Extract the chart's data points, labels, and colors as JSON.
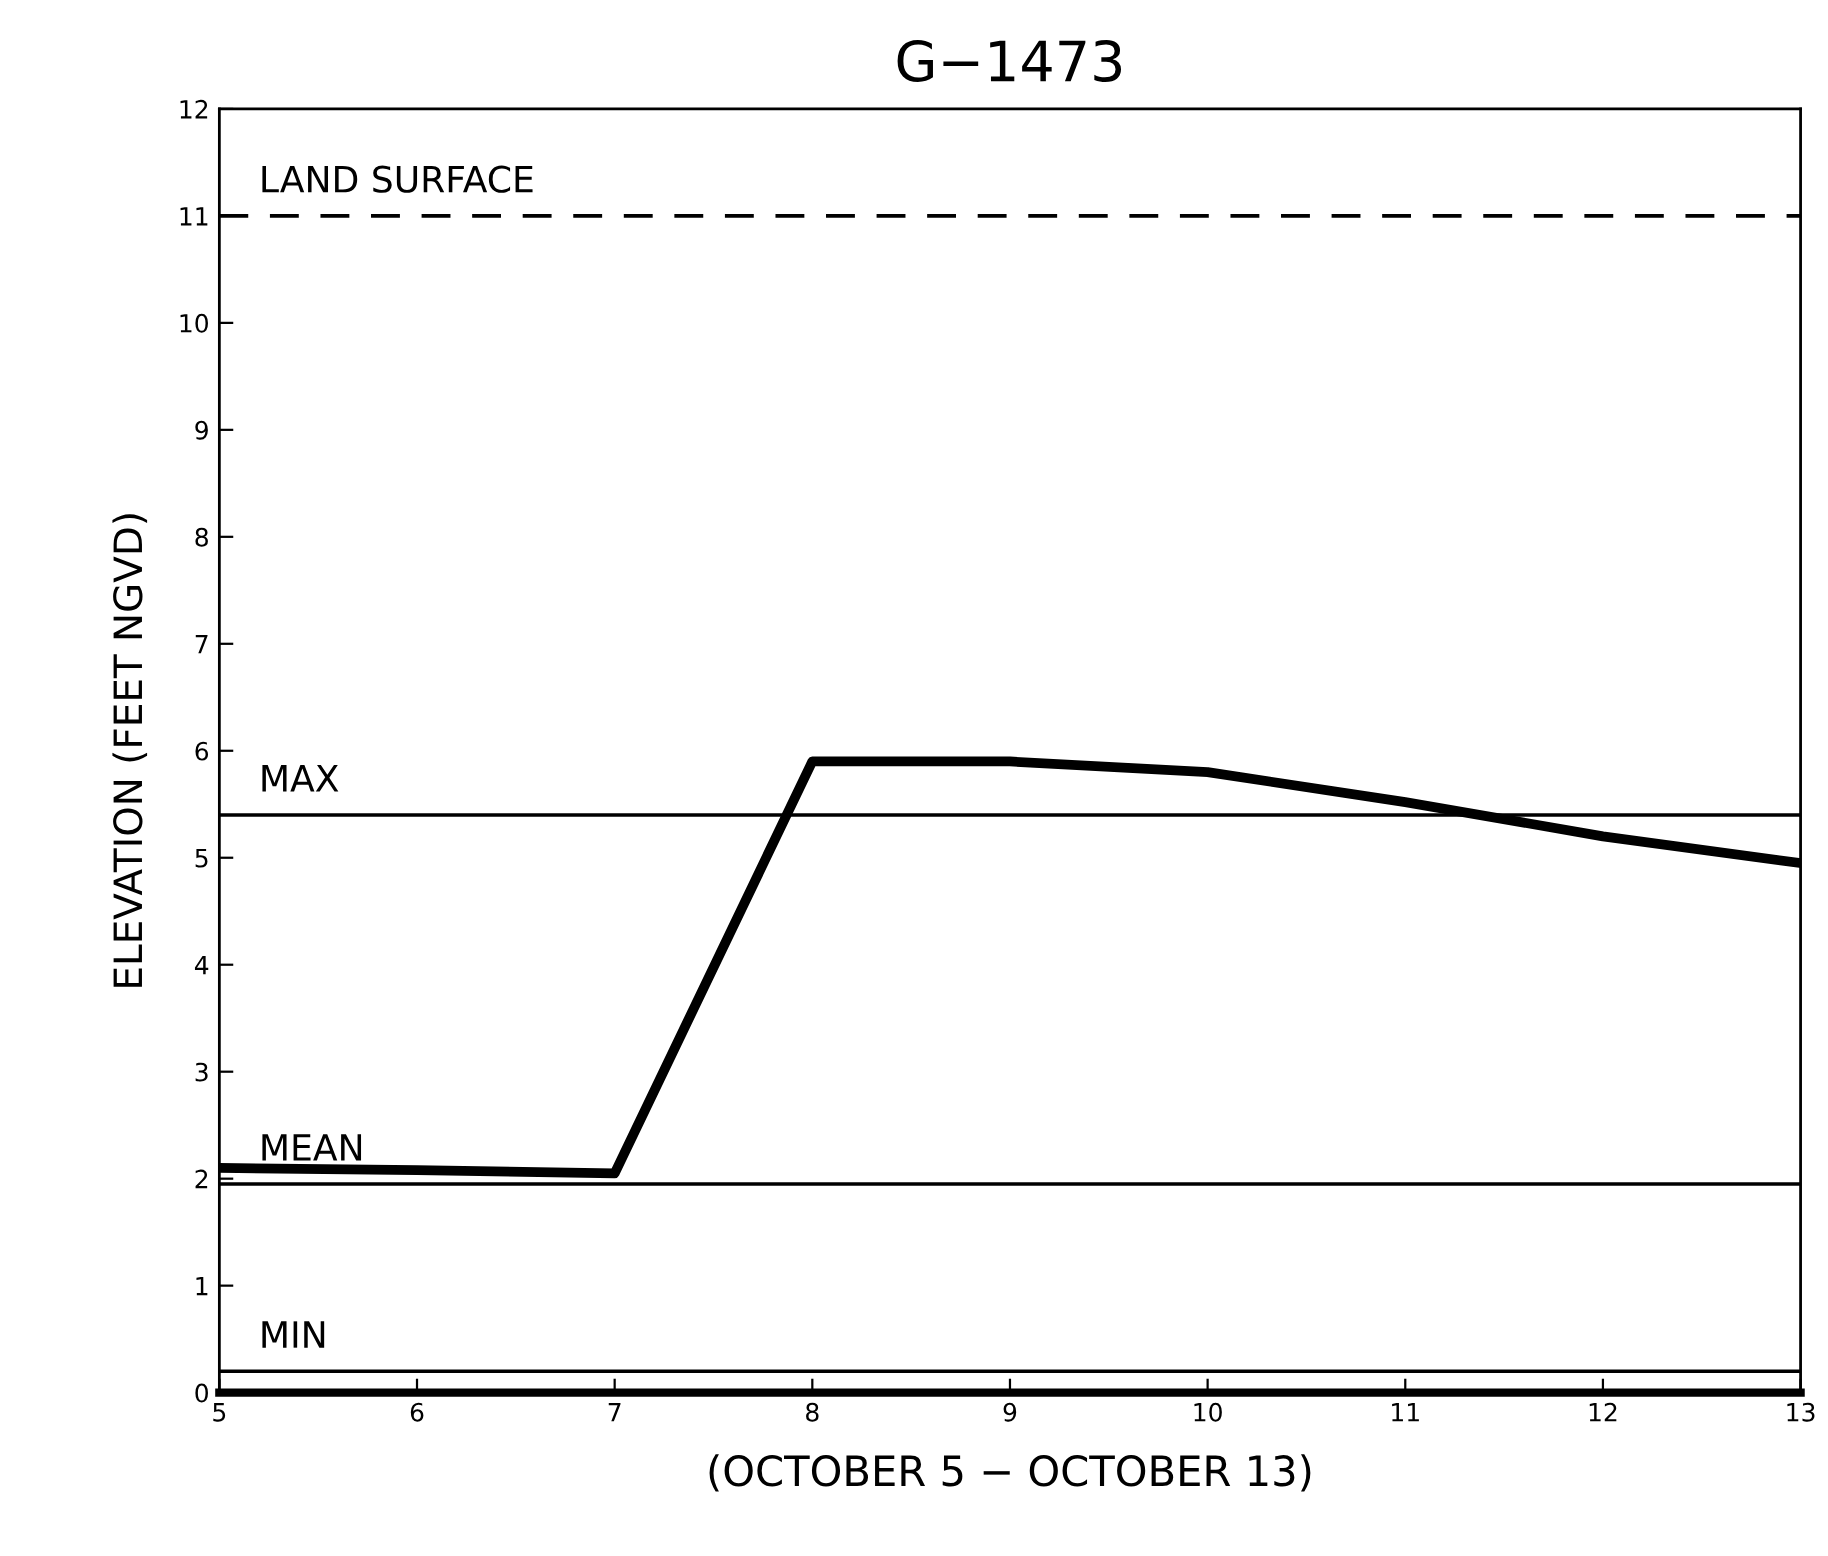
{
  "chart_data": {
    "type": "line",
    "title": "G−1473",
    "xlabel": "(OCTOBER 5 − OCTOBER 13)",
    "ylabel": "ELEVATION (FEET NGVD)",
    "x": [
      5,
      6,
      7,
      8,
      9,
      10,
      11,
      12,
      13
    ],
    "series": [
      {
        "color": "#000000",
        "values": [
          2.1,
          2.08,
          2.05,
          5.9,
          5.9,
          5.8,
          5.52,
          5.2,
          4.95
        ]
      }
    ],
    "xlim": [
      5,
      13
    ],
    "xticks": [
      5,
      6,
      7,
      8,
      9,
      10,
      11,
      12,
      13
    ],
    "ylim": [
      0,
      12
    ],
    "yticks": [
      0,
      1,
      2,
      3,
      4,
      5,
      6,
      7,
      8,
      9,
      10,
      11,
      12
    ],
    "ref_lines": [
      {
        "axis": "y",
        "value": 11,
        "label": "LAND SURFACE",
        "line_style": "dashed",
        "color": "#000000"
      },
      {
        "axis": "y",
        "value": 5.4,
        "label": "MAX",
        "line_style": "solid",
        "color": "#000000"
      },
      {
        "axis": "y",
        "value": 1.95,
        "label": "MEAN",
        "line_style": "solid",
        "color": "#000000"
      },
      {
        "axis": "y",
        "value": 0.2,
        "label": "MIN",
        "line_style": "solid",
        "color": "#000000"
      }
    ],
    "grid": false,
    "legend": false,
    "marker": "none",
    "line_style": "solid"
  }
}
